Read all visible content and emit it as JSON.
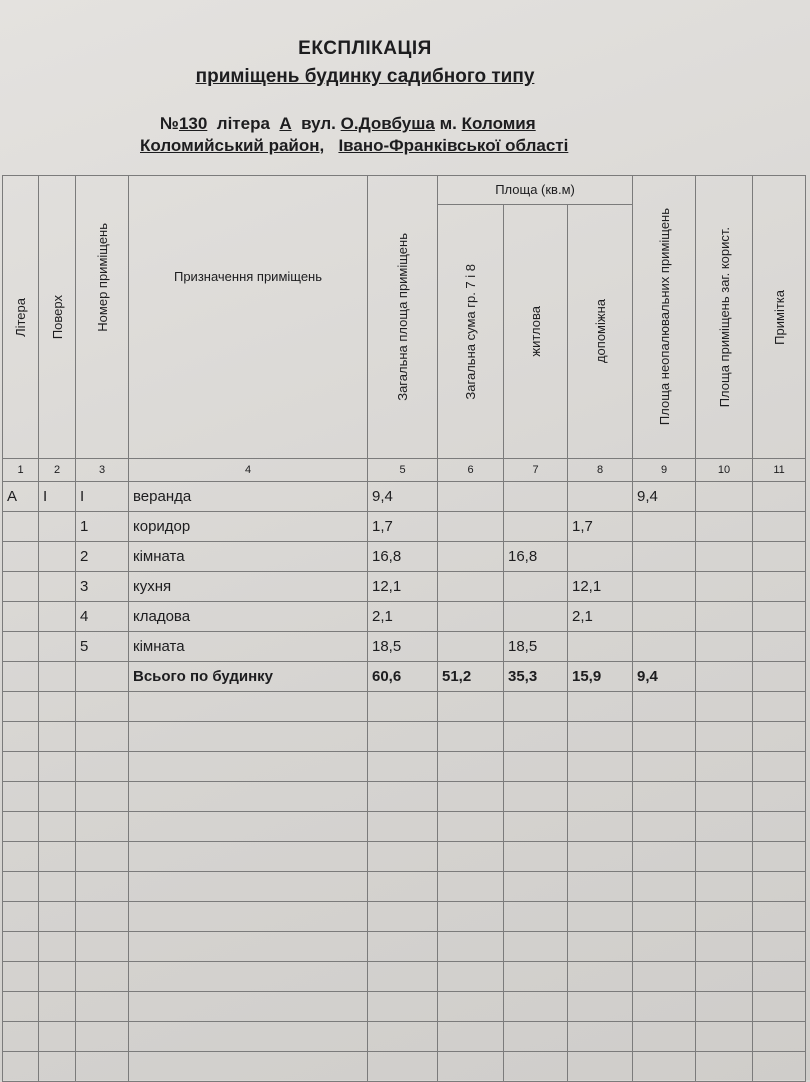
{
  "header": {
    "title": "ЕКСПЛІКАЦІЯ",
    "subtitle": "приміщень будинку садибного типу",
    "number_prefix": "№",
    "number": "130",
    "litera_label": "літера",
    "litera": "А",
    "street_label": "вул.",
    "street": "О.Довбуша",
    "city_label": "м.",
    "city": "Коломия",
    "district": "Коломийський район",
    "region": "Івано-Франківської області"
  },
  "table": {
    "columns": [
      "Літера",
      "Поверх",
      "Номер приміщень",
      "Призначення приміщень",
      "Загальна площа приміщень",
      "Загальна сума гр. 7 і 8",
      "житлова",
      "допоміжна",
      "Площа неопалювальних приміщень",
      "Площа приміщень заг. корист.",
      "Примітка"
    ],
    "group_header": "Площа (кв.м)",
    "column_numbers": [
      "1",
      "2",
      "3",
      "4",
      "5",
      "6",
      "7",
      "8",
      "9",
      "10",
      "11"
    ],
    "rows": [
      [
        "А",
        "I",
        "I",
        "веранда",
        "9,4",
        "",
        "",
        "",
        "9,4",
        "",
        ""
      ],
      [
        "",
        "",
        "1",
        "коридор",
        "1,7",
        "",
        "",
        "1,7",
        "",
        "",
        ""
      ],
      [
        "",
        "",
        "2",
        "кімната",
        "16,8",
        "",
        "16,8",
        "",
        "",
        "",
        ""
      ],
      [
        "",
        "",
        "3",
        "кухня",
        "12,1",
        "",
        "",
        "12,1",
        "",
        "",
        ""
      ],
      [
        "",
        "",
        "4",
        "кладова",
        "2,1",
        "",
        "",
        "2,1",
        "",
        "",
        ""
      ],
      [
        "",
        "",
        "5",
        "кімната",
        "18,5",
        "",
        "18,5",
        "",
        "",
        "",
        ""
      ]
    ],
    "total": [
      "",
      "",
      "",
      "Всього по будинку",
      "60,6",
      "51,2",
      "35,3",
      "15,9",
      "9,4",
      "",
      ""
    ]
  }
}
